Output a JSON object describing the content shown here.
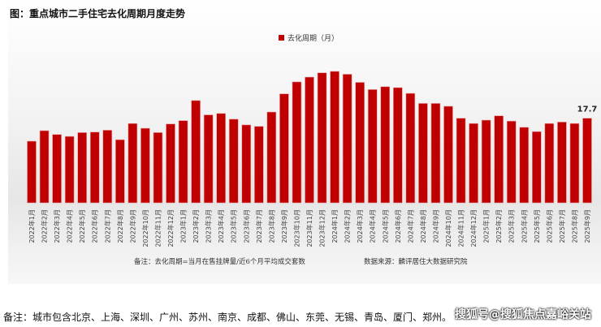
{
  "title": "图：重点城市二手住宅去化周期月度走势",
  "chart_data": {
    "type": "bar",
    "title": "图：重点城市二手住宅去化周期月度走势",
    "legend": "top-center",
    "grid": false,
    "colors": {
      "bar": "#c00000"
    },
    "series": [
      {
        "name": "去化周期（月）",
        "values": [
          12.9,
          15.1,
          14.3,
          13.9,
          14.7,
          14.8,
          15.2,
          13.2,
          16.6,
          15.6,
          14.7,
          16.5,
          17.2,
          21.4,
          18.4,
          18.7,
          17.5,
          16.3,
          16.0,
          19.0,
          22.8,
          25.3,
          26.3,
          27.2,
          27.5,
          26.9,
          25.2,
          23.7,
          24.3,
          24.1,
          22.9,
          20.8,
          20.8,
          20.2,
          17.7,
          16.6,
          17.3,
          18.2,
          17.1,
          15.8,
          14.9,
          16.6,
          16.9,
          16.6,
          17.7
        ]
      }
    ],
    "categories": [
      "2022年1月",
      "2022年2月",
      "2022年3月",
      "2022年4月",
      "2022年5月",
      "2022年6月",
      "2022年7月",
      "2022年8月",
      "2022年9月",
      "2022年10月",
      "2022年11月",
      "2022年12月",
      "2023年1月",
      "2023年2月",
      "2023年3月",
      "2023年4月",
      "2023年5月",
      "2023年6月",
      "2023年7月",
      "2023年8月",
      "2023年9月",
      "2023年10月",
      "2023年11月",
      "2023年12月",
      "2024年1月",
      "2024年2月",
      "2024年3月",
      "2024年4月",
      "2024年5月",
      "2024年6月",
      "2024年7月",
      "2024年8月",
      "2024年9月",
      "2024年10月",
      "2024年11月",
      "2024年12月",
      "2025年1月",
      "2025年2月",
      "2025年3月",
      "2025年4月",
      "2025年5月",
      "2025年6月",
      "2025年7月",
      "2025年8月",
      "2025年9月"
    ],
    "data_labels": {
      "last": "17.7"
    },
    "ylim": [
      0,
      30
    ]
  },
  "notes": {
    "definition": "备注：去化周期=当月在售挂牌量/近6个月平均成交套数",
    "source": "数据来源：麟评居住大数据研究院"
  },
  "footnote": "备注：城市包含北京、上海、深圳、广州、苏州、南京、成都、佛山、东莞、无锡、青岛、厦门、郑州。",
  "watermark": "搜狐号@搜狐焦点嘉峪关站"
}
